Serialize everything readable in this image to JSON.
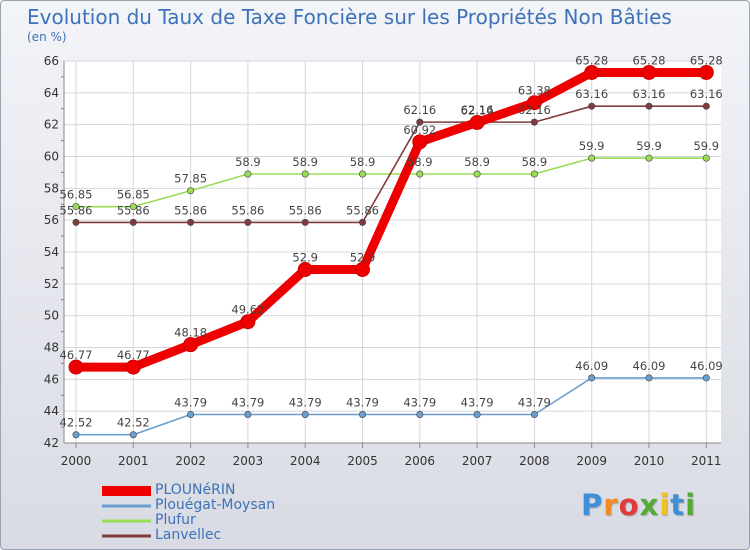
{
  "chart_data": {
    "type": "line",
    "title": "Evolution du Taux de Taxe Foncière sur les Propriétés Non Bâties",
    "ylabel": "(en %)",
    "xlabel": "",
    "x": [
      "2000",
      "2001",
      "2002",
      "2003",
      "2004",
      "2005",
      "2006",
      "2007",
      "2008",
      "2009",
      "2010",
      "2011"
    ],
    "ylim": [
      42,
      66
    ],
    "yticks": [
      "42",
      "44",
      "46",
      "48",
      "50",
      "52",
      "54",
      "56",
      "58",
      "60",
      "62",
      "64",
      "66"
    ],
    "grid": true,
    "series": [
      {
        "name": "PLOUNéRIN",
        "color": "#ee0000",
        "values": [
          46.77,
          46.77,
          48.18,
          49.62,
          52.9,
          52.9,
          60.92,
          62.14,
          63.38,
          65.28,
          65.28,
          65.28
        ],
        "labels": [
          "46.77",
          "46.77",
          "48.18",
          "49.62",
          "52.9",
          "52.9",
          "60.92",
          "62.14",
          "63.38",
          "65.28",
          "65.28",
          "65.28"
        ]
      },
      {
        "name": "Plouégat-Moysan",
        "color": "#6a9fd0",
        "values": [
          42.52,
          42.52,
          43.79,
          43.79,
          43.79,
          43.79,
          43.79,
          43.79,
          43.79,
          46.09,
          46.09,
          46.09
        ],
        "labels": [
          "42.52",
          "42.52",
          "43.79",
          "43.79",
          "43.79",
          "43.79",
          "43.79",
          "43.79",
          "43.79",
          "46.09",
          "46.09",
          "46.09"
        ]
      },
      {
        "name": "Plufur",
        "color": "#99dd55",
        "values": [
          56.85,
          56.85,
          57.85,
          58.9,
          58.9,
          58.9,
          58.9,
          58.9,
          58.9,
          59.9,
          59.9,
          59.9
        ],
        "labels": [
          "56.85",
          "56.85",
          "57.85",
          "58.9",
          "58.9",
          "58.9",
          "58.9",
          "58.9",
          "58.9",
          "59.9",
          "59.9",
          "59.9"
        ]
      },
      {
        "name": "Lanvellec",
        "color": "#803c3c",
        "values": [
          55.86,
          55.86,
          55.86,
          55.86,
          55.86,
          55.86,
          62.16,
          62.16,
          62.16,
          63.16,
          63.16,
          63.16
        ],
        "labels": [
          "55.86",
          "55.86",
          "55.86",
          "55.86",
          "55.86",
          "55.86",
          "62.16",
          "62.16",
          "62.16",
          "63.16",
          "63.16",
          "63.16"
        ]
      }
    ]
  },
  "logo": {
    "letters": [
      "P",
      "r",
      "o",
      "x",
      "i",
      "t",
      "i"
    ],
    "colors": [
      "#3f8fd8",
      "#f28c1e",
      "#e03a3a",
      "#55aa33",
      "#f2c21e",
      "#3f8fd8",
      "#55aa33"
    ]
  }
}
